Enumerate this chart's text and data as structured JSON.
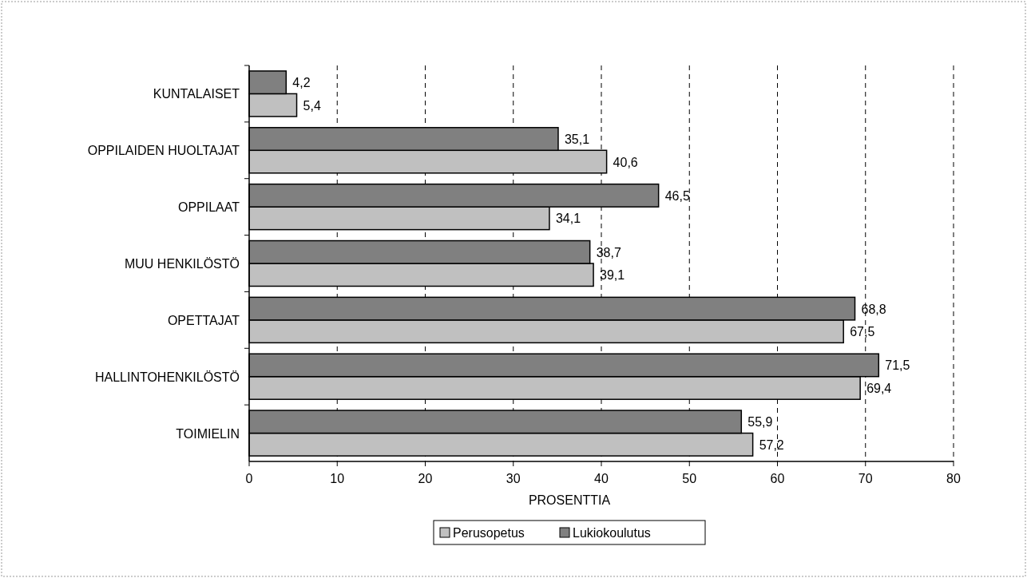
{
  "chart_data": {
    "type": "bar",
    "orientation": "horizontal",
    "xlabel": "PROSENTTIA",
    "categories": [
      "KUNTALAISET",
      "OPPILAIDEN HUOLTAJAT",
      "OPPILAAT",
      "MUU HENKILÖSTÖ",
      "OPETTAJAT",
      "HALLINTOHENKILÖSTÖ",
      "TOIMIELIN"
    ],
    "series": [
      {
        "name": "Perusopetus",
        "color": "#c0c0c0",
        "values": [
          5.4,
          40.6,
          34.1,
          39.1,
          67.5,
          69.4,
          57.2
        ],
        "value_labels": [
          "5,4",
          "40,6",
          "34,1",
          "39,1",
          "67,5",
          "69,4",
          "57,2"
        ]
      },
      {
        "name": "Lukiokoulutus",
        "color": "#808080",
        "values": [
          4.2,
          35.1,
          46.5,
          38.7,
          68.8,
          71.5,
          55.9
        ],
        "value_labels": [
          "4,2",
          "35,1",
          "46,5",
          "38,7",
          "68,8",
          "71,5",
          "55,9"
        ]
      }
    ],
    "xlim": [
      0,
      80
    ],
    "xticks": [
      0,
      10,
      20,
      30,
      40,
      50,
      60,
      70,
      80
    ],
    "grid": "x",
    "legend": "bottom"
  }
}
